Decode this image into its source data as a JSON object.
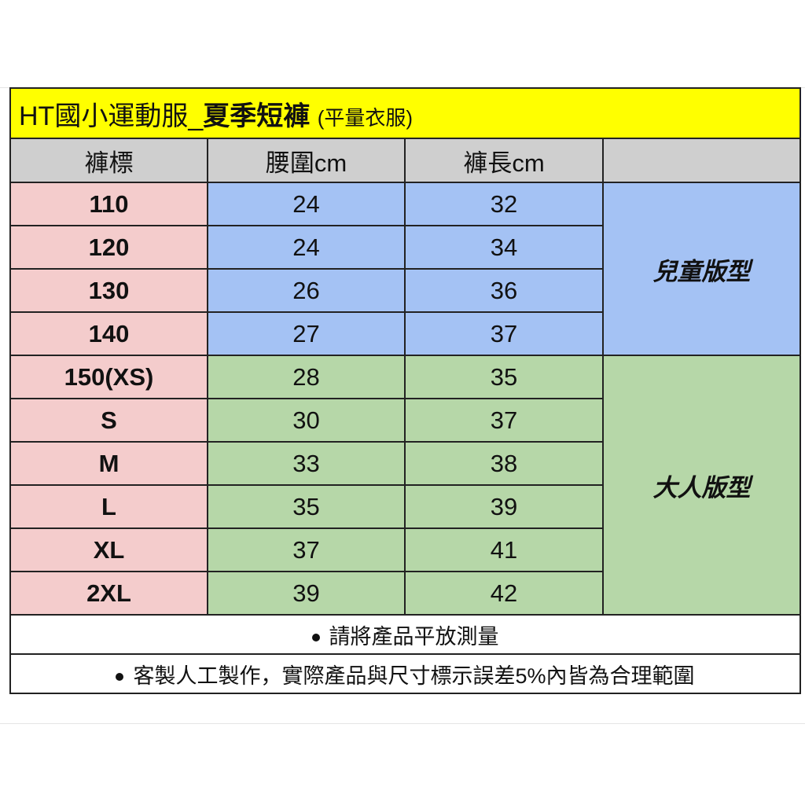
{
  "title": {
    "main": "HT國小運動服_",
    "bold": "夏季短褲",
    "sub": "(平量衣服)"
  },
  "headers": [
    "褲標",
    "腰圍cm",
    "褲長cm",
    ""
  ],
  "groups": {
    "kids": "兒童版型",
    "adults": "大人版型"
  },
  "rows": [
    {
      "size": "110",
      "waist": "24",
      "length": "32"
    },
    {
      "size": "120",
      "waist": "24",
      "length": "34"
    },
    {
      "size": "130",
      "waist": "26",
      "length": "36"
    },
    {
      "size": "140",
      "waist": "27",
      "length": "37"
    },
    {
      "size": "150(XS)",
      "waist": "28",
      "length": "35"
    },
    {
      "size": "S",
      "waist": "30",
      "length": "37"
    },
    {
      "size": "M",
      "waist": "33",
      "length": "38"
    },
    {
      "size": "L",
      "waist": "35",
      "length": "39"
    },
    {
      "size": "XL",
      "waist": "37",
      "length": "41"
    },
    {
      "size": "2XL",
      "waist": "39",
      "length": "42"
    }
  ],
  "notes": [
    "請將產品平放測量",
    "客製人工製作，實際產品與尺寸標示誤差5%內皆為合理範圍"
  ],
  "colors": {
    "title": "#ffff00",
    "header": "#cfcfcf",
    "size": "#f4cccc",
    "kids": "#a4c2f4",
    "adults": "#b6d7a8"
  }
}
